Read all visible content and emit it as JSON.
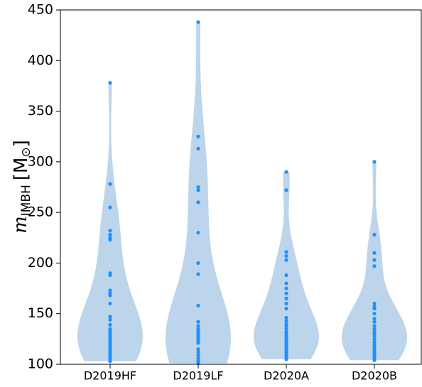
{
  "chart_data": {
    "type": "violin",
    "ylabel": [
      "m",
      "IMBH",
      "[M",
      "⊙",
      "]"
    ],
    "categories": [
      "D2019HF",
      "D2019LF",
      "D2020A",
      "D2020B"
    ],
    "values": [
      [
        378,
        278,
        255,
        232,
        228,
        225,
        223,
        190,
        188,
        173,
        170,
        168,
        160,
        147,
        144,
        139,
        135,
        133,
        131,
        129,
        127,
        125,
        123,
        121,
        119,
        117,
        115,
        113,
        111,
        109,
        107,
        105,
        103
      ],
      [
        438,
        325,
        313,
        275,
        272,
        260,
        230,
        200,
        189,
        158,
        142,
        138,
        135,
        133,
        131,
        129,
        127,
        125,
        123,
        121,
        115,
        112,
        109,
        106,
        104,
        103,
        101
      ],
      [
        290,
        272,
        211,
        207,
        203,
        188,
        180,
        175,
        170,
        165,
        160,
        155,
        146,
        143,
        140,
        138,
        135,
        132,
        130,
        128,
        126,
        124,
        122,
        120,
        118,
        116,
        114,
        112,
        110,
        108,
        106,
        105
      ],
      [
        300,
        228,
        210,
        203,
        197,
        160,
        157,
        155,
        150,
        145,
        142,
        138,
        135,
        132,
        130,
        128,
        125,
        122,
        120,
        118,
        116,
        114,
        112,
        110,
        108,
        106,
        104
      ]
    ],
    "body_color": "#bcd5ea",
    "point_color": "#1e90ff",
    "ylim": [
      100,
      450
    ],
    "yticks": [
      100,
      150,
      200,
      250,
      300,
      350,
      400,
      450
    ]
  }
}
